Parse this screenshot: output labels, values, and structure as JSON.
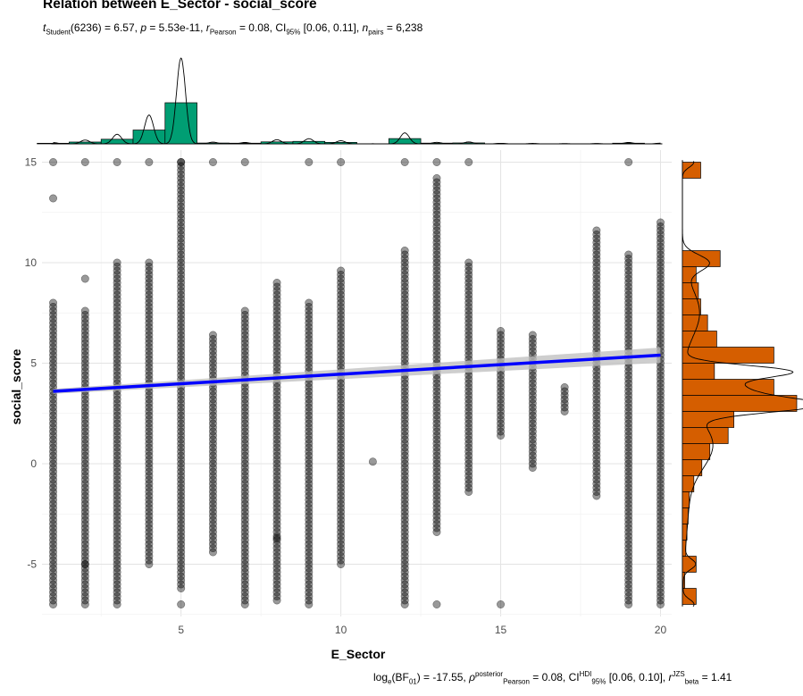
{
  "header": {
    "title": "Relation between E_Sector - social_score",
    "subtitle": {
      "t_sym": "t",
      "t_sub": "Student",
      "df_part": "(6236) = 6.57, ",
      "p_sym": "p",
      "p_part": " = 5.53e-11, ",
      "r_sym": "r",
      "r_sub": "Pearson",
      "r_part": " = 0.08, CI",
      "ci_sub": "95%",
      "ci_part": " [0.06, 0.11], ",
      "n_sym": "n",
      "n_sub": "pairs",
      "n_part": " = 6,238"
    }
  },
  "caption": {
    "bf_part": "log",
    "bf_sub": "e",
    "bf_rest": "(BF",
    "bf01_sub": "01",
    "bf_value": ") = -17.55, ",
    "rho_sym": "ρ",
    "rho_sup": "posterior",
    "rho_sub": "Pearson",
    "rho_value": " = 0.08, CI",
    "hdi_sup": "HDI",
    "hdi_sub": "95%",
    "hdi_value": " [0.06, 0.10], ",
    "r_sym": "r",
    "r_sup": "JZS",
    "r_sub": "beta",
    "r_value": " = 1.41"
  },
  "chart_data": {
    "type": "scatter",
    "xlabel": "E_Sector",
    "ylabel": "social_score",
    "xlim": [
      0.65,
      20.35
    ],
    "ylim": [
      -7.6,
      15.6
    ],
    "x_ticks": [
      5,
      10,
      15,
      20
    ],
    "y_ticks": [
      -5,
      0,
      5,
      10,
      15
    ],
    "grid": true,
    "colors": {
      "points": "#000000",
      "fit_line": "#0000ff",
      "ci_band": "#bebebe",
      "top_histogram": "#009e73",
      "right_histogram": "#d55e00"
    },
    "columns": [
      {
        "x": 1,
        "min": -7,
        "max": 8.1,
        "max_cap": 15,
        "extras": [
          13.2
        ]
      },
      {
        "x": 2,
        "min": -7,
        "max": 7.7,
        "max_cap": 15,
        "extras": [
          9.2,
          -5
        ]
      },
      {
        "x": 3,
        "min": -7,
        "max": 10,
        "max_cap": 15
      },
      {
        "x": 4,
        "min": -5,
        "max": 10,
        "max_cap": 15
      },
      {
        "x": 5,
        "min": -6.2,
        "max": 15,
        "max_cap": 15,
        "extras": [
          -7
        ]
      },
      {
        "x": 6,
        "min": -4.4,
        "max": 6.4,
        "max_cap": 15
      },
      {
        "x": 7,
        "min": -7,
        "max": 7.6,
        "max_cap": 15
      },
      {
        "x": 8,
        "min": -6.8,
        "max": 9,
        "extras": [
          -3.7
        ]
      },
      {
        "x": 9,
        "min": -7,
        "max": 8,
        "max_cap": 15
      },
      {
        "x": 10,
        "min": -5,
        "max": 9.6,
        "max_cap": 15
      },
      {
        "x": 11,
        "min": 0.1,
        "max": 0.1
      },
      {
        "x": 12,
        "min": -7,
        "max": 10.7,
        "max_cap": 15
      },
      {
        "x": 13,
        "min": -3.4,
        "max": 14.2,
        "max_cap": 15,
        "extras": [
          -7
        ]
      },
      {
        "x": 14,
        "min": -1.4,
        "max": 10,
        "max_cap": 15
      },
      {
        "x": 15,
        "min": 1.4,
        "max": 6.7,
        "extras": [
          -7
        ]
      },
      {
        "x": 16,
        "min": -0.2,
        "max": 6.4
      },
      {
        "x": 17,
        "min": 2.6,
        "max": 3.8
      },
      {
        "x": 18,
        "min": -1.6,
        "max": 11.6
      },
      {
        "x": 19,
        "min": -7,
        "max": 10.4,
        "max_cap": 15
      },
      {
        "x": 20,
        "min": -7,
        "max": 12.1
      }
    ],
    "fit": {
      "x": [
        1,
        20
      ],
      "y": [
        3.6,
        5.4
      ],
      "ci_halfwidth": [
        0.12,
        0.38
      ]
    },
    "top_histogram": {
      "bins_x": [
        1,
        2,
        3,
        4,
        5,
        6,
        7,
        8,
        9,
        10,
        11,
        12,
        13,
        14,
        15,
        16,
        17,
        18,
        19,
        20
      ],
      "counts": [
        18,
        55,
        140,
        420,
        1250,
        25,
        20,
        60,
        75,
        45,
        2,
        160,
        22,
        28,
        8,
        6,
        4,
        5,
        20,
        10
      ]
    },
    "right_histogram": {
      "bins": [
        [
          -7,
          -6.2,
          0.12
        ],
        [
          -6.2,
          -5.4,
          0.02
        ],
        [
          -5.4,
          -4.6,
          0.12
        ],
        [
          -4.6,
          -3.8,
          0.03
        ],
        [
          -3.8,
          -3.0,
          0.04
        ],
        [
          -3.0,
          -2.2,
          0.05
        ],
        [
          -2.2,
          -1.4,
          0.06
        ],
        [
          -1.4,
          -0.6,
          0.1
        ],
        [
          -0.6,
          0.2,
          0.17
        ],
        [
          0.2,
          1.0,
          0.24
        ],
        [
          1.0,
          1.8,
          0.4
        ],
        [
          1.8,
          2.6,
          0.45
        ],
        [
          2.6,
          3.4,
          1.0
        ],
        [
          3.4,
          4.2,
          0.8
        ],
        [
          4.2,
          5.0,
          0.28
        ],
        [
          5.0,
          5.8,
          0.8
        ],
        [
          5.8,
          6.6,
          0.3
        ],
        [
          6.6,
          7.4,
          0.22
        ],
        [
          7.4,
          8.2,
          0.16
        ],
        [
          8.2,
          9.0,
          0.14
        ],
        [
          9.0,
          9.8,
          0.12
        ],
        [
          9.8,
          10.6,
          0.33
        ],
        [
          14.2,
          15.0,
          0.16
        ]
      ]
    }
  }
}
